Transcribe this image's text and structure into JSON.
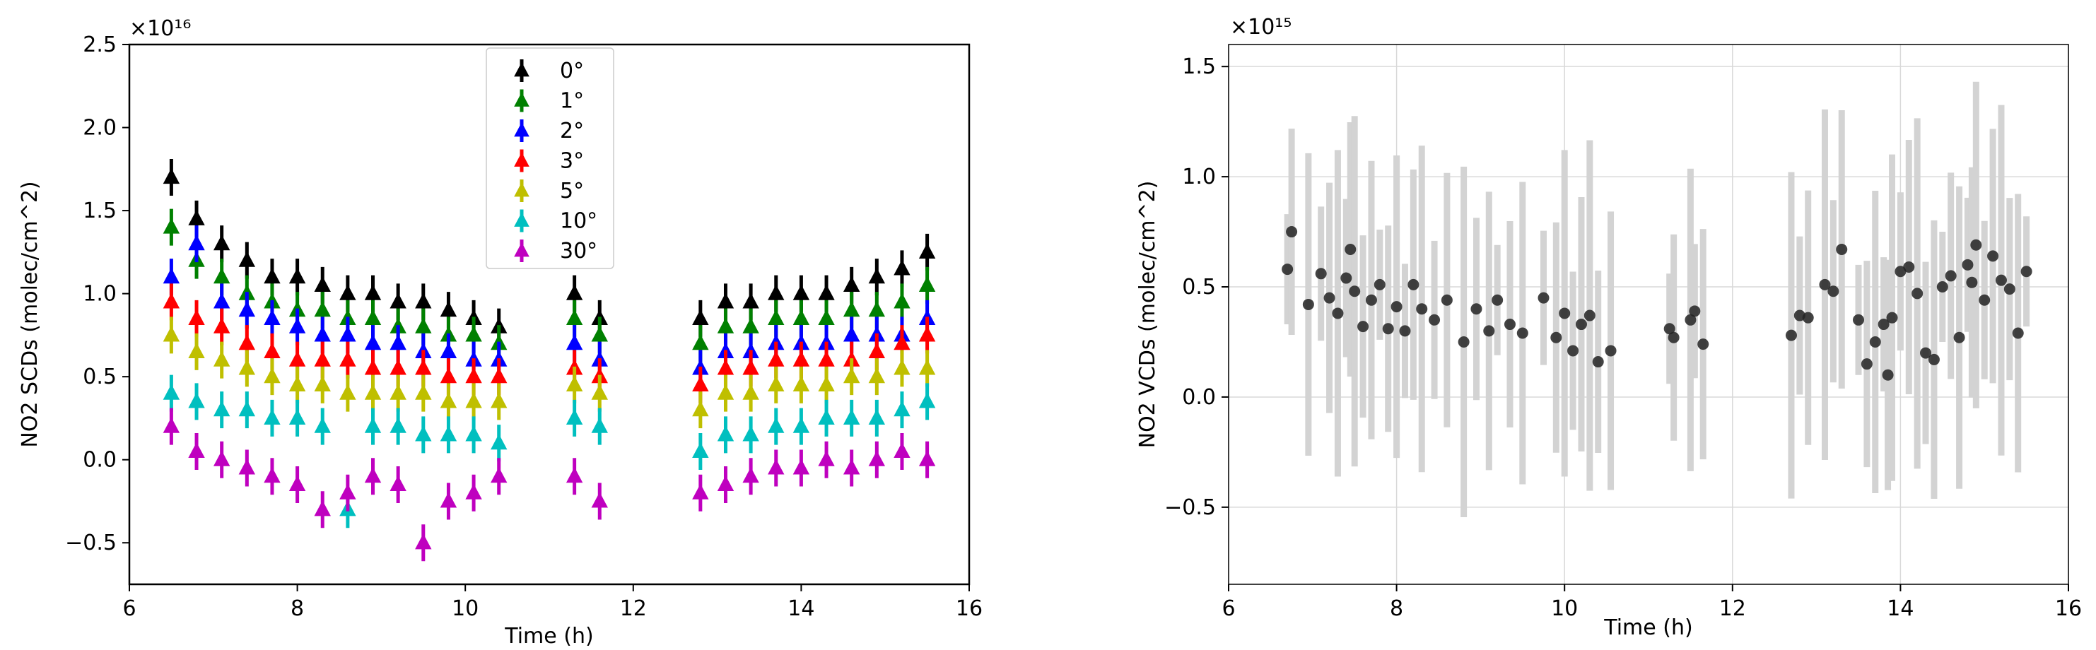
{
  "chart_data": [
    {
      "type": "scatter",
      "xlabel": "Time (h)",
      "ylabel": "NO2 SCDs (molec/cm^2)",
      "offset_text": "×10¹⁶",
      "xlim": [
        6,
        16
      ],
      "ylim": [
        -0.75,
        2.5
      ],
      "x_ticks": [
        "6",
        "8",
        "10",
        "12",
        "14",
        "16"
      ],
      "y_ticks": [
        "−0.5",
        "0.0",
        "0.5",
        "1.0",
        "1.5",
        "2.0",
        "2.5"
      ],
      "grid": false,
      "legend_position": "top-center",
      "marker": "triangle-up with vertical error bars",
      "series": [
        {
          "name": "0°",
          "color": "#000000",
          "x": [
            6.5,
            6.8,
            7.1,
            7.4,
            7.7,
            8.0,
            8.3,
            8.6,
            8.9,
            9.2,
            9.5,
            9.8,
            10.1,
            10.4,
            11.3,
            11.6,
            12.8,
            13.1,
            13.4,
            13.7,
            14.0,
            14.3,
            14.6,
            14.9,
            15.2,
            15.5
          ],
          "y": [
            1.7,
            1.45,
            1.3,
            1.2,
            1.1,
            1.1,
            1.05,
            1.0,
            1.0,
            0.95,
            0.95,
            0.9,
            0.85,
            0.8,
            1.0,
            0.85,
            0.85,
            0.95,
            0.95,
            1.0,
            1.0,
            1.0,
            1.05,
            1.1,
            1.15,
            1.25
          ]
        },
        {
          "name": "1°",
          "color": "#008000",
          "x": [
            6.5,
            6.8,
            7.1,
            7.4,
            7.7,
            8.0,
            8.3,
            8.6,
            8.9,
            9.2,
            9.5,
            9.8,
            10.1,
            10.4,
            11.3,
            11.6,
            12.8,
            13.1,
            13.4,
            13.7,
            14.0,
            14.3,
            14.6,
            14.9,
            15.2,
            15.5
          ],
          "y": [
            1.4,
            1.2,
            1.1,
            1.0,
            0.95,
            0.9,
            0.9,
            0.85,
            0.85,
            0.8,
            0.8,
            0.75,
            0.75,
            0.7,
            0.85,
            0.75,
            0.7,
            0.8,
            0.8,
            0.85,
            0.85,
            0.85,
            0.9,
            0.9,
            0.95,
            1.05
          ]
        },
        {
          "name": "2°",
          "color": "#0000ff",
          "x": [
            6.5,
            6.8,
            7.1,
            7.4,
            7.7,
            8.0,
            8.3,
            8.6,
            8.9,
            9.2,
            9.5,
            9.8,
            10.1,
            10.4,
            11.3,
            11.6,
            12.8,
            13.1,
            13.4,
            13.7,
            14.0,
            14.3,
            14.6,
            14.9,
            15.2,
            15.5
          ],
          "y": [
            1.1,
            1.3,
            0.95,
            0.9,
            0.85,
            0.8,
            0.75,
            0.75,
            0.7,
            0.7,
            0.65,
            0.65,
            0.6,
            0.6,
            0.7,
            0.6,
            0.55,
            0.65,
            0.65,
            0.7,
            0.7,
            0.7,
            0.75,
            0.75,
            0.75,
            0.85
          ]
        },
        {
          "name": "3°",
          "color": "#ff0000",
          "x": [
            6.5,
            6.8,
            7.1,
            7.4,
            7.7,
            8.0,
            8.3,
            8.6,
            8.9,
            9.2,
            9.5,
            9.8,
            10.1,
            10.4,
            11.3,
            11.6,
            12.8,
            13.1,
            13.4,
            13.7,
            14.0,
            14.3,
            14.6,
            14.9,
            15.2,
            15.5
          ],
          "y": [
            0.95,
            0.85,
            0.8,
            0.7,
            0.65,
            0.6,
            0.6,
            0.6,
            0.55,
            0.55,
            0.55,
            0.5,
            0.5,
            0.5,
            0.55,
            0.5,
            0.45,
            0.55,
            0.55,
            0.6,
            0.6,
            0.6,
            0.6,
            0.65,
            0.7,
            0.75
          ]
        },
        {
          "name": "5°",
          "color": "#bfbf00",
          "x": [
            6.5,
            6.8,
            7.1,
            7.4,
            7.7,
            8.0,
            8.3,
            8.6,
            8.9,
            9.2,
            9.5,
            9.8,
            10.1,
            10.4,
            11.3,
            11.6,
            12.8,
            13.1,
            13.4,
            13.7,
            14.0,
            14.3,
            14.6,
            14.9,
            15.2,
            15.5
          ],
          "y": [
            0.75,
            0.65,
            0.6,
            0.55,
            0.5,
            0.45,
            0.45,
            0.4,
            0.4,
            0.4,
            0.4,
            0.35,
            0.35,
            0.35,
            0.45,
            0.4,
            0.3,
            0.4,
            0.4,
            0.45,
            0.45,
            0.45,
            0.5,
            0.5,
            0.55,
            0.55
          ]
        },
        {
          "name": "10°",
          "color": "#00bfbf",
          "x": [
            6.5,
            6.8,
            7.1,
            7.4,
            7.7,
            8.0,
            8.3,
            8.6,
            8.9,
            9.2,
            9.5,
            9.8,
            10.1,
            10.4,
            11.3,
            11.6,
            12.8,
            13.1,
            13.4,
            13.7,
            14.0,
            14.3,
            14.6,
            14.9,
            15.2,
            15.5
          ],
          "y": [
            0.4,
            0.35,
            0.3,
            0.3,
            0.25,
            0.25,
            0.2,
            -0.3,
            0.2,
            0.2,
            0.15,
            0.15,
            0.15,
            0.1,
            0.25,
            0.2,
            0.05,
            0.15,
            0.15,
            0.2,
            0.2,
            0.25,
            0.25,
            0.25,
            0.3,
            0.35
          ]
        },
        {
          "name": "30°",
          "color": "#bf00bf",
          "x": [
            6.5,
            6.8,
            7.1,
            7.4,
            7.7,
            8.0,
            8.3,
            8.6,
            8.9,
            9.2,
            9.5,
            9.8,
            10.1,
            10.4,
            11.3,
            11.6,
            12.8,
            13.1,
            13.4,
            13.7,
            14.0,
            14.3,
            14.6,
            14.9,
            15.2,
            15.5
          ],
          "y": [
            0.2,
            0.05,
            0.0,
            -0.05,
            -0.1,
            -0.15,
            -0.3,
            -0.2,
            -0.1,
            -0.15,
            -0.5,
            -0.25,
            -0.2,
            -0.1,
            -0.1,
            -0.25,
            -0.2,
            -0.15,
            -0.1,
            -0.05,
            -0.05,
            0.0,
            -0.05,
            0.0,
            0.05,
            0.0
          ]
        }
      ]
    },
    {
      "type": "scatter",
      "xlabel": "Time (h)",
      "ylabel": "NO2 VCDs (molec/cm^2)",
      "offset_text": "×10¹⁵",
      "xlim": [
        6,
        16
      ],
      "ylim": [
        -0.85,
        1.6
      ],
      "x_ticks": [
        "6",
        "8",
        "10",
        "12",
        "14",
        "16"
      ],
      "y_ticks": [
        "−0.5",
        "0.0",
        "0.5",
        "1.0",
        "1.5"
      ],
      "grid": true,
      "marker": "circle with grey vertical error bars",
      "series": [
        {
          "name": "",
          "color": "#222222",
          "errorbar_color": "#d3d3d3",
          "x": [
            6.7,
            6.75,
            6.95,
            7.1,
            7.2,
            7.3,
            7.4,
            7.45,
            7.5,
            7.6,
            7.7,
            7.8,
            7.9,
            8.0,
            8.1,
            8.2,
            8.3,
            8.45,
            8.6,
            8.8,
            8.95,
            9.1,
            9.2,
            9.35,
            9.5,
            9.75,
            9.9,
            10.0,
            10.1,
            10.2,
            10.3,
            10.4,
            10.55,
            11.25,
            11.3,
            11.5,
            11.55,
            11.65,
            12.7,
            12.8,
            12.9,
            13.1,
            13.2,
            13.3,
            13.5,
            13.6,
            13.7,
            13.8,
            13.85,
            13.9,
            14.0,
            14.1,
            14.2,
            14.3,
            14.4,
            14.5,
            14.6,
            14.7,
            14.8,
            14.85,
            14.9,
            15.0,
            15.1,
            15.2,
            15.3,
            15.4,
            15.5
          ],
          "y": [
            0.58,
            0.75,
            0.42,
            0.56,
            0.45,
            0.38,
            0.54,
            0.67,
            0.48,
            0.32,
            0.44,
            0.51,
            0.31,
            0.41,
            0.3,
            0.51,
            0.4,
            0.35,
            0.44,
            0.25,
            0.4,
            0.3,
            0.44,
            0.33,
            0.29,
            0.45,
            0.27,
            0.38,
            0.21,
            0.33,
            0.37,
            0.16,
            0.21,
            0.31,
            0.27,
            0.35,
            0.39,
            0.24,
            0.28,
            0.37,
            0.36,
            0.51,
            0.48,
            0.67,
            0.35,
            0.15,
            0.25,
            0.33,
            0.1,
            0.36,
            0.57,
            0.59,
            0.47,
            0.2,
            0.17,
            0.5,
            0.55,
            0.27,
            0.6,
            0.52,
            0.69,
            0.44,
            0.64,
            0.53,
            0.49,
            0.29,
            0.57
          ]
        }
      ]
    }
  ]
}
